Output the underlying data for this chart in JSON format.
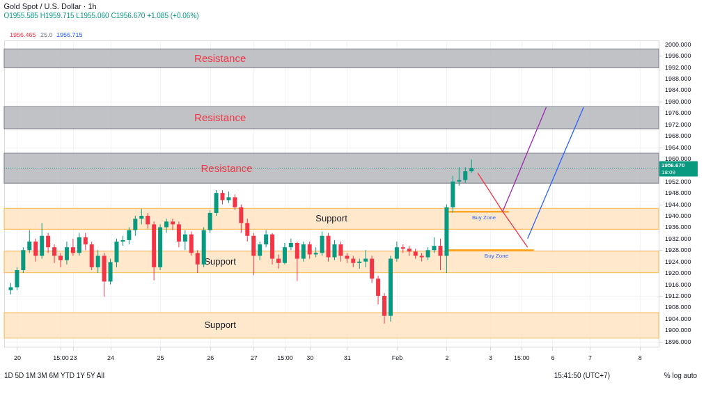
{
  "chart_data": {
    "type": "candlestick",
    "title": "Gold Spot / U.S. Dollar · 1h",
    "subtitle": "O1955.585 H1959.715 L1955.060 C1956.670 +1.085 (+0.06%)",
    "categories": [
      null,
      "20",
      null,
      null,
      null,
      null,
      null,
      null,
      "15:00",
      null,
      "23",
      null,
      null,
      null,
      null,
      null,
      "24",
      null,
      null,
      null,
      null,
      null,
      null,
      null,
      "25",
      null,
      null,
      null,
      null,
      null,
      null,
      null,
      "26",
      null,
      null,
      null,
      null,
      null,
      null,
      "27",
      null,
      null,
      null,
      null,
      "15:00",
      null,
      null,
      null,
      "30",
      null,
      null,
      null,
      null,
      null,
      "31",
      null,
      null,
      null,
      null,
      null,
      null,
      null,
      "Feb",
      null,
      null,
      null,
      null,
      null,
      null,
      null,
      "2",
      null,
      null,
      null,
      null,
      null,
      null,
      "3",
      null,
      null,
      null,
      null,
      "15:00",
      null,
      null,
      null,
      null,
      "6",
      null,
      null,
      null,
      null,
      null,
      "7",
      null,
      null,
      null,
      null,
      null,
      null,
      null,
      "8",
      null,
      null
    ],
    "ohlc": [
      [
        1914,
        1916.5,
        1912.5,
        1915
      ],
      [
        1915,
        1922,
        1914,
        1921
      ],
      [
        1921,
        1929,
        1920,
        1928
      ],
      [
        1928,
        1935,
        1927,
        1931
      ],
      [
        1931,
        1932,
        1924,
        1926
      ],
      [
        1926,
        1937.5,
        1925,
        1933
      ],
      [
        1933,
        1934,
        1927,
        1929
      ],
      [
        1929,
        1930,
        1923.5,
        1926
      ],
      [
        1926,
        1927,
        1922,
        1924.5
      ],
      [
        1924.5,
        1931,
        1923,
        1929
      ],
      [
        1929,
        1932,
        1926,
        1927
      ],
      [
        1927,
        1934,
        1926,
        1932.5
      ],
      [
        1932.5,
        1934,
        1928,
        1930
      ],
      [
        1930,
        1931,
        1921,
        1922
      ],
      [
        1922,
        1928,
        1920,
        1926
      ],
      [
        1926,
        1927,
        1911.7,
        1917
      ],
      [
        1917,
        1925,
        1916,
        1923.8
      ],
      [
        1923.8,
        1932,
        1922,
        1931
      ],
      [
        1931,
        1933,
        1929.5,
        1931.5
      ],
      [
        1931.5,
        1936,
        1930,
        1935
      ],
      [
        1935,
        1940,
        1933,
        1939
      ],
      [
        1939,
        1942.4,
        1937,
        1940
      ],
      [
        1940,
        1941,
        1935.5,
        1937
      ],
      [
        1937,
        1938,
        1917.4,
        1922
      ],
      [
        1922,
        1937,
        1921,
        1936
      ],
      [
        1936,
        1939,
        1934,
        1938
      ],
      [
        1938,
        1939,
        1935,
        1937
      ],
      [
        1937,
        1938,
        1929,
        1931
      ],
      [
        1931,
        1935,
        1928,
        1933.5
      ],
      [
        1933.5,
        1934.5,
        1926,
        1927
      ],
      [
        1927,
        1928,
        1920,
        1923
      ],
      [
        1923,
        1936,
        1922,
        1935
      ],
      [
        1935,
        1942,
        1934,
        1941
      ],
      [
        1941,
        1949,
        1940,
        1948
      ],
      [
        1948,
        1949,
        1944,
        1945.5
      ],
      [
        1945.5,
        1948.5,
        1944.5,
        1946.5
      ],
      [
        1946.5,
        1947.5,
        1942,
        1943
      ],
      [
        1943,
        1944,
        1934,
        1937.5
      ],
      [
        1937.5,
        1939,
        1931,
        1933
      ],
      [
        1933,
        1934,
        1919.2,
        1926
      ],
      [
        1926,
        1931,
        1924.5,
        1930
      ],
      [
        1930,
        1935,
        1929,
        1933.5
      ],
      [
        1933.5,
        1934,
        1923,
        1925
      ],
      [
        1925,
        1926.5,
        1921.5,
        1923.5
      ],
      [
        1923.5,
        1930.5,
        1923,
        1929
      ],
      [
        1929,
        1932,
        1928,
        1930.5
      ],
      [
        1930.5,
        1931,
        1917.2,
        1925
      ],
      [
        1925,
        1931,
        1924,
        1930
      ],
      [
        1930,
        1931,
        1925,
        1926.5
      ],
      [
        1926.5,
        1929,
        1925.5,
        1927
      ],
      [
        1927,
        1934.5,
        1926,
        1933
      ],
      [
        1933,
        1934,
        1924,
        1925.5
      ],
      [
        1925.5,
        1931.5,
        1924.5,
        1930
      ],
      [
        1930,
        1931,
        1924,
        1926
      ],
      [
        1926,
        1927,
        1923.5,
        1925
      ],
      [
        1925,
        1926,
        1922,
        1923.5
      ],
      [
        1923.5,
        1925,
        1921.5,
        1924
      ],
      [
        1924,
        1928,
        1922,
        1925
      ],
      [
        1925,
        1926,
        1916.5,
        1918
      ],
      [
        1918,
        1919,
        1909,
        1912
      ],
      [
        1912,
        1913,
        1902.3,
        1905
      ],
      [
        1905,
        1926,
        1903,
        1925
      ],
      [
        1925,
        1931,
        1924,
        1929
      ],
      [
        1929,
        1930,
        1927,
        1928.5
      ],
      [
        1928.5,
        1929.5,
        1926,
        1927.5
      ],
      [
        1927.5,
        1928.5,
        1925,
        1926
      ],
      [
        1926,
        1927,
        1924,
        1925.5
      ],
      [
        1925.5,
        1929,
        1924.5,
        1928
      ],
      [
        1928,
        1932.5,
        1927,
        1929.5
      ],
      [
        1929.5,
        1932,
        1921,
        1926
      ],
      [
        1926,
        1944,
        1920,
        1943
      ],
      [
        1943,
        1954,
        1941,
        1952
      ],
      [
        1952,
        1957,
        1950.5,
        1952.5
      ],
      [
        1952.5,
        1957,
        1951.5,
        1955.585
      ],
      [
        1955.585,
        1959.715,
        1955.06,
        1956.67
      ],
      null,
      null,
      null,
      null,
      null,
      null,
      null,
      null,
      null,
      null,
      null,
      null,
      null,
      null,
      null,
      null,
      null,
      null,
      null,
      null,
      null,
      null,
      null,
      null,
      null,
      null,
      null,
      null,
      null
    ],
    "colors": [
      "#089981",
      "#089981",
      "#089981",
      "#089981",
      "#f23645",
      "#089981",
      "#f23645",
      "#f23645",
      "#f23645",
      "#089981",
      "#f23645",
      "#089981",
      "#f23645",
      "#f23645",
      "#089981",
      "#f23645",
      "#089981",
      "#089981",
      "#089981",
      "#089981",
      "#089981",
      "#089981",
      "#f23645",
      "#f23645",
      "#089981",
      "#089981",
      "#f23645",
      "#f23645",
      "#089981",
      "#f23645",
      "#f23645",
      "#089981",
      "#089981",
      "#089981",
      "#f23645",
      "#089981",
      "#f23645",
      "#f23645",
      "#f23645",
      "#f23645",
      "#089981",
      "#089981",
      "#f23645",
      "#f23645",
      "#089981",
      "#089981",
      "#f23645",
      "#089981",
      "#f23645",
      "#089981",
      "#089981",
      "#f23645",
      "#089981",
      "#f23645",
      "#f23645",
      "#f23645",
      "#089981",
      "#089981",
      "#f23645",
      "#f23645",
      "#f23645",
      "#089981",
      "#089981",
      "#f23645",
      "#f23645",
      "#f23645",
      "#f23645",
      "#089981",
      "#089981",
      "#f23645",
      "#089981",
      "#089981",
      "#089981",
      "#089981",
      "#089981",
      null,
      null,
      null,
      null,
      null,
      null,
      null,
      null,
      null,
      null,
      null,
      null,
      null,
      null,
      null,
      null,
      null,
      null,
      null,
      null,
      null,
      null,
      null,
      null,
      null,
      null,
      null,
      null,
      null
    ],
    "bands": [
      {
        "axis": "y",
        "from": 1991.8,
        "to": 1998.4,
        "label": "Resistance",
        "color": "#b7b8bd"
      },
      {
        "axis": "y",
        "from": 1970.5,
        "to": 1978.2,
        "label": "Resistance",
        "color": "#b7b8bd"
      },
      {
        "axis": "y",
        "from": 1951.4,
        "to": 1961.9,
        "label": "Resistance",
        "color": "#b7b8bd"
      },
      {
        "axis": "y",
        "from": 1935.3,
        "to": 1942.6,
        "label": "Support",
        "color": "#ffe5c2"
      },
      {
        "axis": "y",
        "from": 1920.1,
        "to": 1927.6,
        "label": "Support",
        "color": "#ffe5c2"
      },
      {
        "axis": "y",
        "from": 1897.2,
        "to": 1906.1,
        "label": "Support",
        "color": "#ffe5c2"
      }
    ],
    "ref_lines": [
      {
        "axis": "y",
        "value": 1956.67,
        "label": "1956.670",
        "color": "#089981",
        "line_style": "dotted"
      }
    ],
    "annotations": [
      "1956.465",
      "25.0",
      "1956.715",
      "18:09",
      "1D  5D  1M  3M  6M  YTD  1Y  5Y  All",
      "15:41:50 (UTC+7)",
      "%  log  auto"
    ],
    "series": [
      {
        "type": "line",
        "name": "Buy Zone",
        "color": "#ff9800",
        "values": [
          null,
          null,
          null,
          null,
          null,
          null,
          null,
          null,
          null,
          null,
          null,
          null,
          null,
          null,
          null,
          null,
          null,
          null,
          null,
          null,
          null,
          null,
          null,
          null,
          null,
          null,
          null,
          null,
          null,
          null,
          null,
          null,
          null,
          null,
          null,
          null,
          null,
          null,
          null,
          null,
          null,
          null,
          null,
          null,
          null,
          null,
          null,
          null,
          null,
          null,
          null,
          null,
          null,
          null,
          null,
          null,
          null,
          null,
          null,
          null,
          null,
          null,
          null,
          null,
          null,
          null,
          null,
          null,
          null,
          null,
          1941.4,
          1941.4,
          1941.4,
          1941.4,
          1941.4,
          1941.4,
          1941.4,
          1941.4,
          1941.4,
          1941.4,
          1941.4,
          null,
          null,
          null,
          null,
          null,
          null,
          null,
          null,
          null,
          null,
          null,
          null,
          null,
          null,
          null,
          null,
          null,
          null,
          null,
          null,
          null,
          null,
          null
        ]
      },
      {
        "type": "line",
        "name": "Buy Zone",
        "color": "#ff9800",
        "values": [
          null,
          null,
          null,
          null,
          null,
          null,
          null,
          null,
          null,
          null,
          null,
          null,
          null,
          null,
          null,
          null,
          null,
          null,
          null,
          null,
          null,
          null,
          null,
          null,
          null,
          null,
          null,
          null,
          null,
          null,
          null,
          null,
          null,
          null,
          null,
          null,
          null,
          null,
          null,
          null,
          null,
          null,
          null,
          null,
          null,
          null,
          null,
          null,
          null,
          null,
          null,
          null,
          null,
          null,
          null,
          null,
          null,
          null,
          null,
          null,
          null,
          null,
          null,
          null,
          null,
          null,
          null,
          null,
          null,
          null,
          1928,
          1928,
          1928,
          1928,
          1928,
          1928,
          1928,
          1928,
          1928,
          1928,
          1928,
          1928,
          1928,
          1928,
          1928,
          null,
          null,
          null,
          null,
          null,
          null,
          null,
          null,
          null,
          null,
          null,
          null,
          null,
          null,
          null,
          null,
          null,
          null,
          null
        ]
      },
      {
        "type": "line",
        "color": "#f23645",
        "values": [
          null,
          null,
          null,
          null,
          null,
          null,
          null,
          null,
          null,
          null,
          null,
          null,
          null,
          null,
          null,
          null,
          null,
          null,
          null,
          null,
          null,
          null,
          null,
          null,
          null,
          null,
          null,
          null,
          null,
          null,
          null,
          null,
          null,
          null,
          null,
          null,
          null,
          null,
          null,
          null,
          null,
          null,
          null,
          null,
          null,
          null,
          null,
          null,
          null,
          null,
          null,
          null,
          null,
          null,
          null,
          null,
          null,
          null,
          null,
          null,
          null,
          null,
          null,
          null,
          null,
          null,
          null,
          null,
          null,
          null,
          null,
          null,
          null,
          null,
          null,
          1955,
          1951.6,
          1948.3,
          1944.9,
          1941.5,
          1938.4,
          1935.3,
          1932.1,
          1929,
          null,
          null,
          null,
          null,
          null,
          null,
          null,
          null,
          null,
          null,
          null,
          null,
          null,
          null,
          null,
          null,
          null,
          null,
          null,
          null
        ]
      },
      {
        "type": "line",
        "color": "#9c27b0",
        "values": [
          null,
          null,
          null,
          null,
          null,
          null,
          null,
          null,
          null,
          null,
          null,
          null,
          null,
          null,
          null,
          null,
          null,
          null,
          null,
          null,
          null,
          null,
          null,
          null,
          null,
          null,
          null,
          null,
          null,
          null,
          null,
          null,
          null,
          null,
          null,
          null,
          null,
          null,
          null,
          null,
          null,
          null,
          null,
          null,
          null,
          null,
          null,
          null,
          null,
          null,
          null,
          null,
          null,
          null,
          null,
          null,
          null,
          null,
          null,
          null,
          null,
          null,
          null,
          null,
          null,
          null,
          null,
          null,
          null,
          null,
          null,
          null,
          null,
          null,
          null,
          null,
          null,
          null,
          null,
          1941.5,
          1946.7,
          1951.9,
          1957.1,
          1962.4,
          1967.6,
          1972.8,
          1978,
          null,
          null,
          null,
          null,
          null,
          null,
          null,
          null,
          null,
          null,
          null,
          null,
          null,
          null,
          null,
          null,
          null
        ]
      },
      {
        "type": "line",
        "color": "#2962ff",
        "values": [
          null,
          null,
          null,
          null,
          null,
          null,
          null,
          null,
          null,
          null,
          null,
          null,
          null,
          null,
          null,
          null,
          null,
          null,
          null,
          null,
          null,
          null,
          null,
          null,
          null,
          null,
          null,
          null,
          null,
          null,
          null,
          null,
          null,
          null,
          null,
          null,
          null,
          null,
          null,
          null,
          null,
          null,
          null,
          null,
          null,
          null,
          null,
          null,
          null,
          null,
          null,
          null,
          null,
          null,
          null,
          null,
          null,
          null,
          null,
          null,
          null,
          null,
          null,
          null,
          null,
          null,
          null,
          null,
          null,
          null,
          null,
          null,
          null,
          null,
          null,
          null,
          null,
          null,
          null,
          null,
          null,
          null,
          null,
          1932,
          1937.1,
          1942.2,
          1947.3,
          1952.4,
          1957.6,
          1962.7,
          1967.8,
          1972.9,
          1978,
          null,
          null,
          null,
          null,
          null,
          null,
          null,
          null,
          null,
          null,
          null
        ]
      }
    ],
    "ylim": [
      1894.2,
      2001.4
    ],
    "yticks": [
      {
        "value": 1896,
        "label": "1896.000"
      },
      {
        "value": 1900,
        "label": "1900.000"
      },
      {
        "value": 1904,
        "label": "1904.000"
      },
      {
        "value": 1908,
        "label": "1908.000"
      },
      {
        "value": 1912,
        "label": "1912.000"
      },
      {
        "value": 1916,
        "label": "1916.000"
      },
      {
        "value": 1920,
        "label": "1920.000"
      },
      {
        "value": 1924,
        "label": "1924.000"
      },
      {
        "value": 1928,
        "label": "1928.000"
      },
      {
        "value": 1932,
        "label": "1932.000"
      },
      {
        "value": 1936,
        "label": "1936.000"
      },
      {
        "value": 1940,
        "label": "1940.000"
      },
      {
        "value": 1944,
        "label": "1944.000"
      },
      {
        "value": 1948,
        "label": "1948.000"
      },
      {
        "value": 1952,
        "label": "1952.000"
      },
      {
        "value": 1960,
        "label": "1960.000"
      },
      {
        "value": 1964,
        "label": "1964.000"
      },
      {
        "value": 1968,
        "label": "1968.000"
      },
      {
        "value": 1972,
        "label": "1972.000"
      },
      {
        "value": 1976,
        "label": "1976.000"
      },
      {
        "value": 1980,
        "label": "1980.000"
      },
      {
        "value": 1984,
        "label": "1984.000"
      },
      {
        "value": 1988,
        "label": "1988.000"
      },
      {
        "value": 1992,
        "label": "1992.000"
      },
      {
        "value": 1996,
        "label": "1996.000"
      },
      {
        "value": 2000,
        "label": "2000.000"
      }
    ],
    "grid": true
  }
}
